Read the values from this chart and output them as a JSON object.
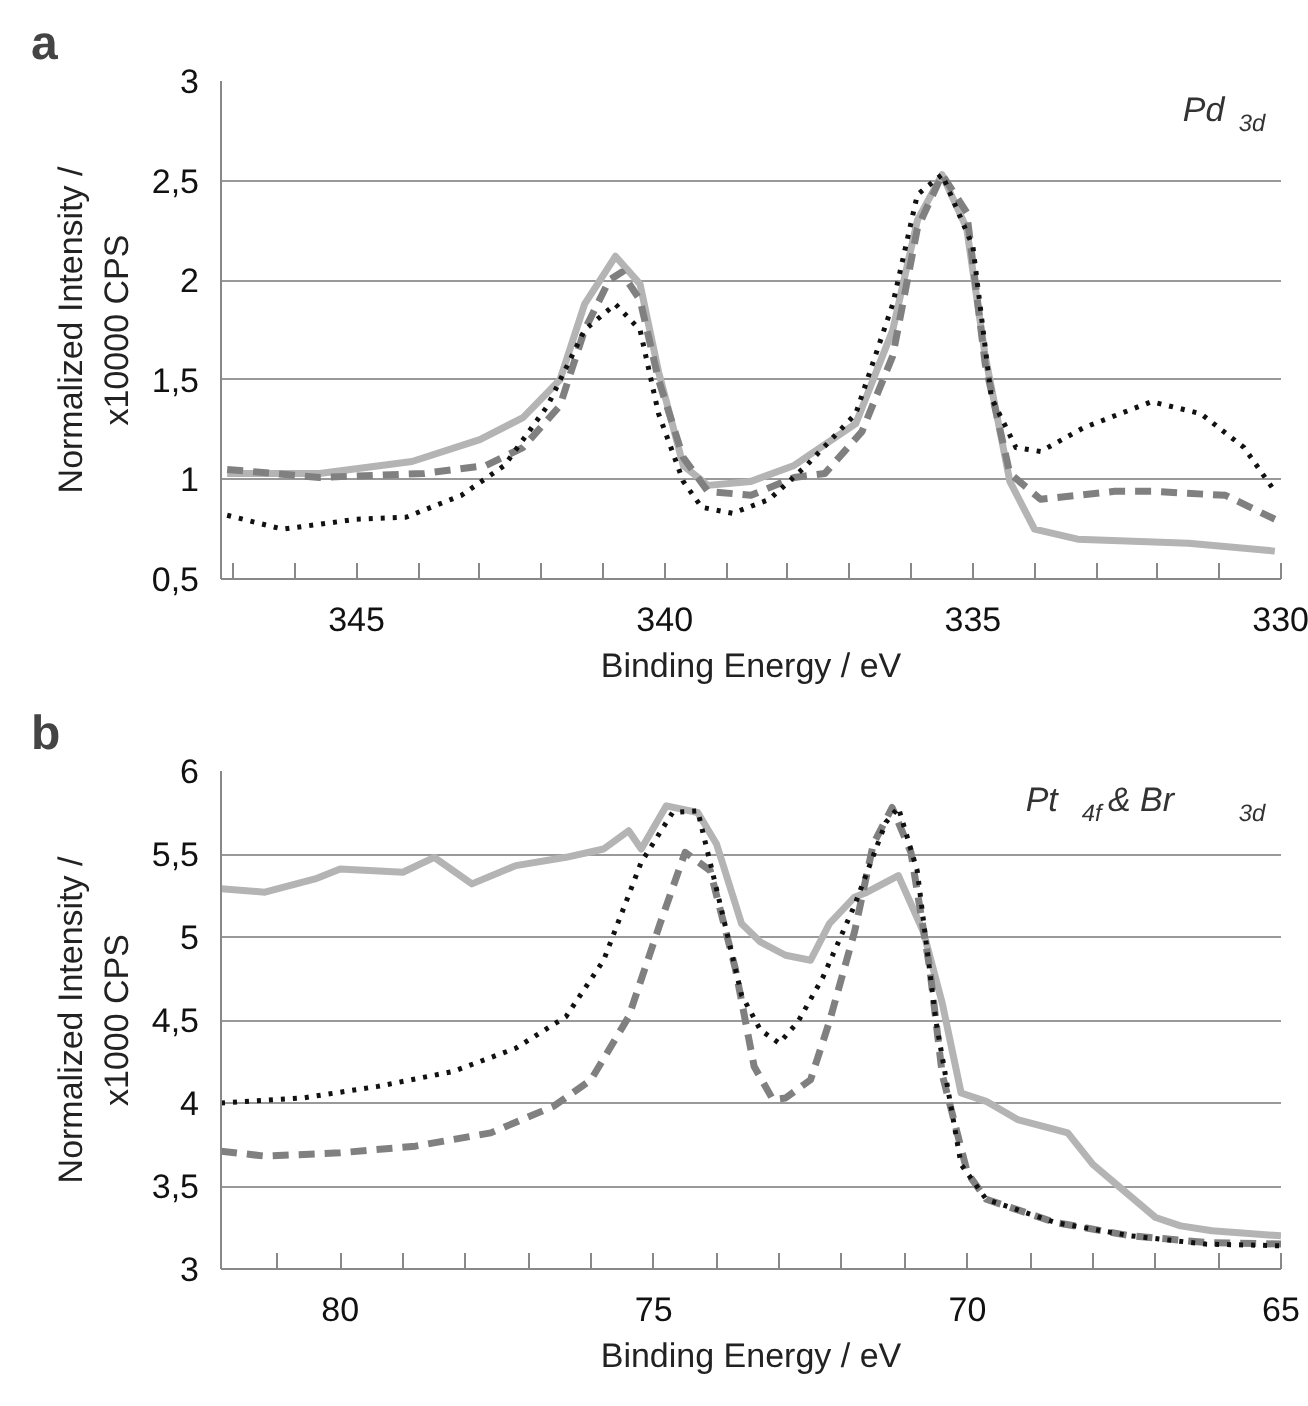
{
  "chart_data": [
    {
      "type": "line",
      "title": "a",
      "annotations": [
        "Pd $_{3d}$"
      ],
      "xlabel": "Binding Energy / eV",
      "ylabel": "Normalized Intensity /\nx10000 CPS",
      "xlim": [
        347.2,
        330
      ],
      "ylim": [
        0.5,
        3
      ],
      "xticks": [
        {
          "value": 347,
          "label": null
        },
        {
          "value": 346,
          "label": null
        },
        345,
        {
          "value": 344,
          "label": null
        },
        {
          "value": 343,
          "label": null
        },
        {
          "value": 342,
          "label": null
        },
        {
          "value": 341,
          "label": null
        },
        340,
        {
          "value": 339,
          "label": null
        },
        {
          "value": 338,
          "label": null
        },
        {
          "value": 337,
          "label": null
        },
        {
          "value": 336,
          "label": null
        },
        335,
        {
          "value": 334,
          "label": null
        },
        {
          "value": 333,
          "label": null
        },
        {
          "value": 332,
          "label": null
        },
        {
          "value": 331,
          "label": null
        },
        330
      ],
      "yticks": [
        {
          "value": 0.5,
          "label": "0,5"
        },
        1,
        {
          "value": 1.5,
          "label": "1,5"
        },
        2,
        {
          "value": 2.5,
          "label": "2,5"
        },
        3
      ],
      "grid": "y",
      "series": [
        {
          "color": "#b4b4b4",
          "line_style": "solid",
          "x": [
            347.1,
            345.6,
            344.1,
            343.0,
            342.3,
            341.7,
            341.3,
            340.8,
            340.4,
            340.1,
            339.7,
            339.3,
            338.6,
            337.9,
            336.9,
            336.3,
            335.9,
            335.5,
            335.1,
            334.8,
            334.4,
            334.0,
            333.3,
            331.5,
            330.1
          ],
          "values": [
            1.03,
            1.03,
            1.09,
            1.2,
            1.31,
            1.5,
            1.88,
            2.12,
            1.98,
            1.54,
            1.07,
            0.97,
            0.99,
            1.07,
            1.28,
            1.75,
            2.3,
            2.53,
            2.26,
            1.62,
            0.99,
            0.75,
            0.7,
            0.68,
            0.64
          ]
        },
        {
          "color": "#808080",
          "line_style": "dashed",
          "x": [
            347.1,
            345.6,
            343.9,
            342.9,
            342.3,
            341.7,
            341.3,
            340.9,
            340.7,
            340.4,
            340.1,
            339.7,
            339.3,
            338.6,
            337.9,
            337.4,
            336.8,
            336.3,
            335.9,
            335.5,
            335.1,
            334.8,
            334.4,
            333.9,
            332.7,
            332.1,
            330.9,
            330.1
          ],
          "values": [
            1.05,
            1.01,
            1.03,
            1.07,
            1.16,
            1.37,
            1.75,
            2.0,
            2.04,
            1.9,
            1.5,
            1.11,
            0.94,
            0.92,
            1.01,
            1.03,
            1.24,
            1.62,
            2.26,
            2.53,
            2.34,
            1.58,
            1.03,
            0.9,
            0.94,
            0.94,
            0.92,
            0.8
          ]
        },
        {
          "color": "#111111",
          "line_style": "dotted",
          "x": [
            347.1,
            346.2,
            345.0,
            344.2,
            343.3,
            342.6,
            341.9,
            341.3,
            340.8,
            340.4,
            340.1,
            339.7,
            339.4,
            338.9,
            338.3,
            337.7,
            336.9,
            336.3,
            335.9,
            335.5,
            335.0,
            334.7,
            334.3,
            333.9,
            333.2,
            332.1,
            331.3,
            330.6,
            330.1
          ],
          "values": [
            0.82,
            0.75,
            0.8,
            0.81,
            0.92,
            1.07,
            1.37,
            1.75,
            1.88,
            1.75,
            1.33,
            0.99,
            0.86,
            0.83,
            0.9,
            1.07,
            1.33,
            1.88,
            2.43,
            2.53,
            2.17,
            1.41,
            1.16,
            1.14,
            1.26,
            1.39,
            1.33,
            1.16,
            0.94
          ]
        }
      ]
    },
    {
      "type": "line",
      "title": "b",
      "annotations": [
        "Pt $_{4f}$ &  Br $_{3d}$"
      ],
      "xlabel": "Binding Energy / eV",
      "ylabel": "Normalized Intensity /\nx1000 CPS",
      "xlim": [
        81.9,
        65
      ],
      "ylim": [
        3,
        6
      ],
      "xticks": [
        {
          "value": 81,
          "label": null
        },
        80,
        {
          "value": 79,
          "label": null
        },
        {
          "value": 78,
          "label": null
        },
        {
          "value": 77,
          "label": null
        },
        {
          "value": 76,
          "label": null
        },
        75,
        {
          "value": 74,
          "label": null
        },
        {
          "value": 73,
          "label": null
        },
        {
          "value": 72,
          "label": null
        },
        {
          "value": 71,
          "label": null
        },
        70,
        {
          "value": 69,
          "label": null
        },
        {
          "value": 68,
          "label": null
        },
        {
          "value": 67,
          "label": null
        },
        {
          "value": 66,
          "label": null
        },
        65
      ],
      "yticks": [
        3,
        {
          "value": 3.5,
          "label": "3,5"
        },
        4,
        {
          "value": 4.5,
          "label": "4,5"
        },
        5,
        {
          "value": 5.5,
          "label": "5,5"
        },
        6
      ],
      "grid": "y",
      "series": [
        {
          "color": "#b4b4b4",
          "line_style": "solid",
          "x": [
            81.9,
            81.2,
            80.4,
            80.0,
            79.0,
            78.5,
            77.9,
            77.2,
            76.4,
            75.8,
            75.4,
            75.2,
            74.8,
            74.3,
            74.0,
            73.6,
            73.3,
            72.9,
            72.5,
            72.2,
            71.8,
            71.6,
            71.1,
            70.7,
            70.4,
            70.1,
            69.7,
            69.2,
            68.7,
            68.4,
            68.0,
            67.5,
            67.0,
            66.6,
            66.1,
            65.0
          ],
          "values": [
            5.29,
            5.27,
            5.35,
            5.41,
            5.39,
            5.48,
            5.32,
            5.43,
            5.48,
            5.53,
            5.64,
            5.53,
            5.79,
            5.75,
            5.56,
            5.08,
            4.97,
            4.89,
            4.86,
            5.08,
            5.24,
            5.27,
            5.37,
            5.03,
            4.6,
            4.06,
            4.01,
            3.9,
            3.85,
            3.82,
            3.63,
            3.47,
            3.31,
            3.26,
            3.23,
            3.2
          ]
        },
        {
          "color": "#808080",
          "line_style": "dashed",
          "x": [
            81.9,
            81.2,
            80.0,
            78.8,
            77.6,
            76.6,
            76.0,
            75.4,
            74.9,
            74.5,
            74.1,
            73.7,
            73.4,
            73.1,
            72.9,
            72.5,
            72.2,
            71.8,
            71.5,
            71.2,
            70.9,
            70.6,
            70.4,
            70.0,
            69.7,
            68.6,
            67.4,
            66.2,
            65.0
          ],
          "values": [
            3.71,
            3.68,
            3.7,
            3.74,
            3.82,
            3.98,
            4.14,
            4.52,
            5.08,
            5.51,
            5.4,
            4.81,
            4.22,
            4.02,
            4.03,
            4.14,
            4.49,
            5.03,
            5.56,
            5.78,
            5.51,
            4.81,
            4.17,
            3.58,
            3.42,
            3.28,
            3.2,
            3.16,
            3.15
          ]
        },
        {
          "color": "#111111",
          "line_style": "dotted",
          "x": [
            81.9,
            80.6,
            79.4,
            78.2,
            77.2,
            76.4,
            75.8,
            75.2,
            74.7,
            74.3,
            74.0,
            73.6,
            73.3,
            73.0,
            72.7,
            72.3,
            71.8,
            71.3,
            71.1,
            70.8,
            70.5,
            70.1,
            69.7,
            68.6,
            67.4,
            66.2,
            65.0
          ],
          "values": [
            4.0,
            4.03,
            4.1,
            4.19,
            4.33,
            4.52,
            4.86,
            5.45,
            5.75,
            5.76,
            5.29,
            4.65,
            4.44,
            4.36,
            4.49,
            4.76,
            5.19,
            5.69,
            5.78,
            5.4,
            4.49,
            3.63,
            3.42,
            3.28,
            3.2,
            3.15,
            3.14
          ]
        }
      ]
    }
  ]
}
